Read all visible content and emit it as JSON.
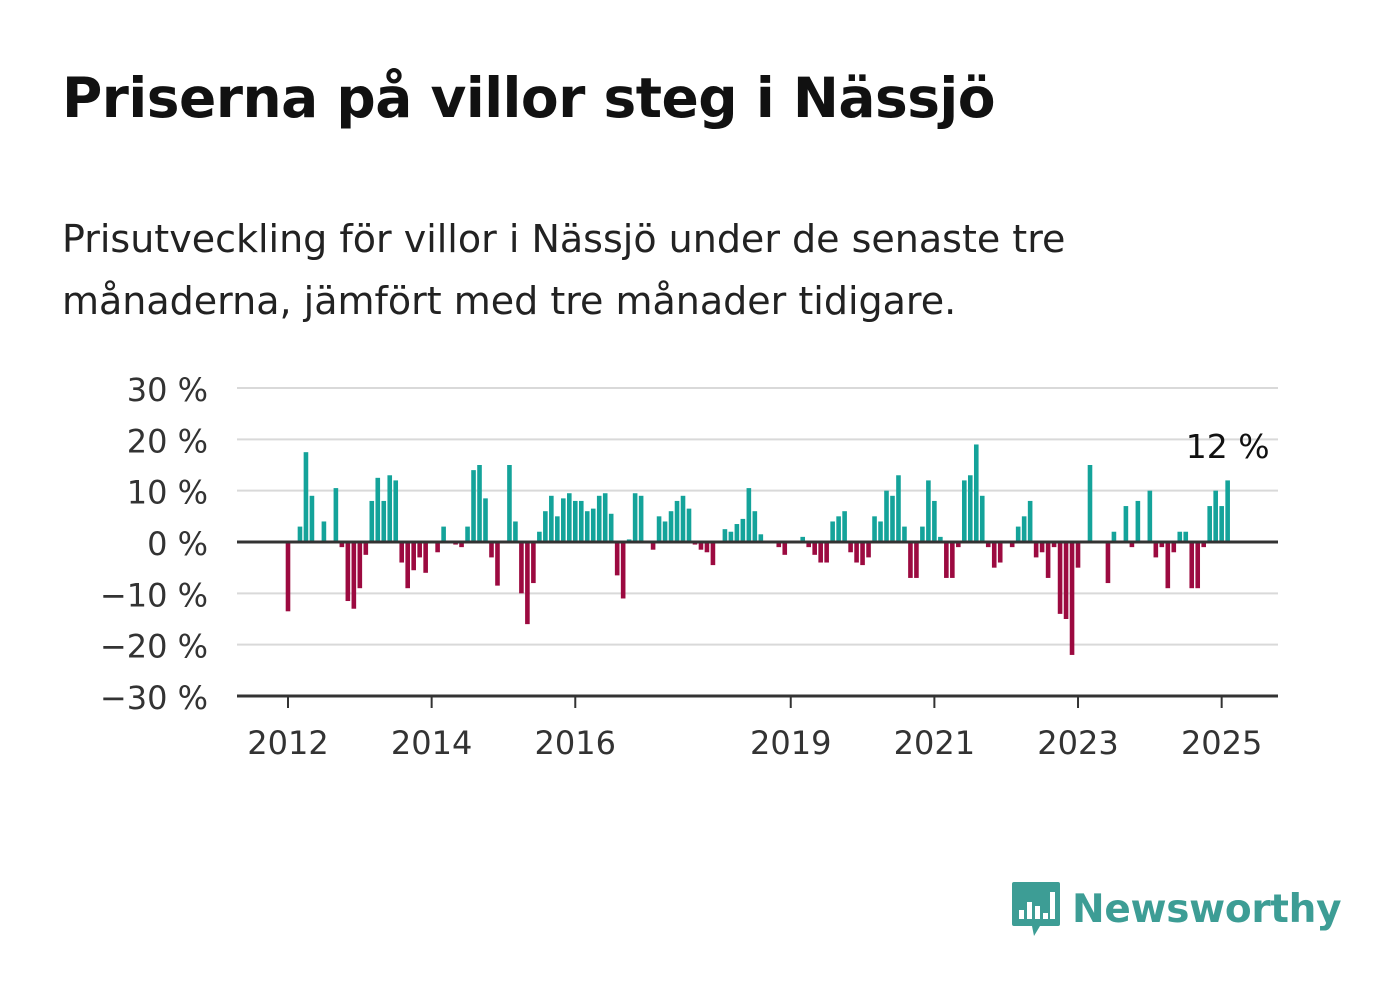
{
  "title": "Priserna på villor steg i Nässjö",
  "subtitle": "Prisutveckling för villor i Nässjö under de senaste tre månaderna, jämfört med tre månader tidigare.",
  "brand": {
    "name": "Newsworthy",
    "icon": "bar-chart-speech-bubble-icon"
  },
  "colors": {
    "positive": "#14a39a",
    "negative": "#9c0a40",
    "grid": "#d9d9d9",
    "axis": "#333333",
    "brand": "#3d9d95"
  },
  "chart_data": {
    "type": "bar",
    "x_start": "2012-01",
    "x_interval": "month",
    "y_unit": "%",
    "ylim": [
      -30,
      30
    ],
    "y_ticks": [
      30,
      20,
      10,
      0,
      -10,
      -20,
      -30
    ],
    "y_tick_labels": [
      "30 %",
      "20 %",
      "10 %",
      "0 %",
      "−10 %",
      "−20 %",
      "−30 %"
    ],
    "x_tick_labels": [
      {
        "label": "2012",
        "date": "2012-01"
      },
      {
        "label": "2014",
        "date": "2014-01"
      },
      {
        "label": "2016",
        "date": "2016-01"
      },
      {
        "label": "2019",
        "date": "2019-01"
      },
      {
        "label": "2021",
        "date": "2021-01"
      },
      {
        "label": "2023",
        "date": "2023-01"
      },
      {
        "label": "2025",
        "date": "2025-01"
      }
    ],
    "annotation": {
      "text": "12 %",
      "date": "2025-01",
      "value": 12
    },
    "grid": true,
    "values": [
      -13.5,
      0,
      3,
      17.5,
      9,
      0,
      4,
      0,
      10.5,
      -1,
      -11.5,
      -13,
      -9,
      -2.5,
      8,
      12.5,
      8,
      13,
      12,
      -4,
      -9,
      -5.5,
      -3,
      -6,
      0,
      -2,
      3,
      0,
      -0.5,
      -1,
      3,
      14,
      15,
      8.5,
      -3,
      -8.5,
      0,
      15,
      4,
      -10,
      -16,
      -8,
      2,
      6,
      9,
      5,
      8.5,
      9.5,
      8,
      8,
      6,
      6.5,
      9,
      9.5,
      5.5,
      -6.5,
      -11,
      0.5,
      9.5,
      9,
      0,
      -1.5,
      5,
      4,
      6,
      8,
      9,
      6.5,
      -0.5,
      -1.5,
      -2,
      -4.5,
      0,
      2.5,
      2,
      3.5,
      4.5,
      10.5,
      6,
      1.5,
      0,
      0,
      -1,
      -2.5,
      0,
      0,
      1,
      -1,
      -2.5,
      -4,
      -4,
      4,
      5,
      6,
      -2,
      -4,
      -4.5,
      -3,
      5,
      4,
      10,
      9,
      13,
      3,
      -7,
      -7,
      3,
      12,
      8,
      1,
      -7,
      -7,
      -1,
      12,
      13,
      19,
      9,
      -1,
      -5,
      -4,
      0,
      -1,
      3,
      5,
      8,
      -3,
      -2,
      -7,
      -1,
      -14,
      -15,
      -22,
      -5,
      0,
      15,
      0,
      0,
      -8,
      2,
      0,
      7,
      -1,
      8,
      0,
      10,
      -3,
      -1,
      -9,
      -2,
      2,
      2,
      -9,
      -9,
      -1,
      7,
      10,
      7,
      12
    ]
  }
}
